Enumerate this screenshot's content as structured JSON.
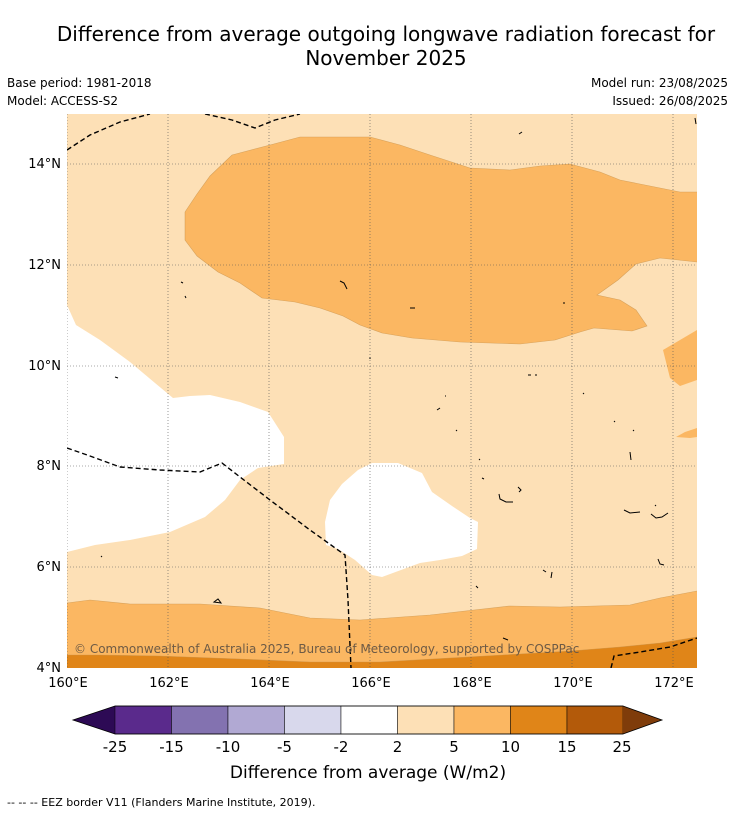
{
  "header": {
    "title_line1": "Difference from average outgoing longwave radiation forecast for",
    "title_line2": "November 2025",
    "base_period": "Base period: 1981-2018",
    "model": "Model: ACCESS-S2",
    "model_run": "Model run: 23/08/2025",
    "issued": "Issued: 26/08/2025"
  },
  "map": {
    "lon_range": [
      160,
      172.5
    ],
    "lat_range": [
      4,
      15
    ],
    "x_ticks": [
      "160°E",
      "162°E",
      "164°E",
      "166°E",
      "168°E",
      "170°E",
      "172°E"
    ],
    "y_ticks": [
      "14°N",
      "12°N",
      "10°N",
      "8°N",
      "6°N",
      "4°N"
    ],
    "copyright": "© Commonwealth of Australia 2025, Bureau of Meteorology, supported by COSPPac"
  },
  "colorbar": {
    "title": "Difference from average (W/m2)",
    "labels": [
      "-25",
      "-15",
      "-10",
      "-5",
      "-2",
      "2",
      "5",
      "10",
      "15",
      "25"
    ],
    "colors": [
      "#2d0a55",
      "#5a2a8c",
      "#8372b0",
      "#b1a9d3",
      "#d8d8ec",
      "#ffffff",
      "#fde0b6",
      "#fbb762",
      "#e08518",
      "#b35a0a",
      "#7f3c0a"
    ]
  },
  "footnote": "-- -- -- EEZ border V11 (Flanders Marine Institute, 2019)."
}
